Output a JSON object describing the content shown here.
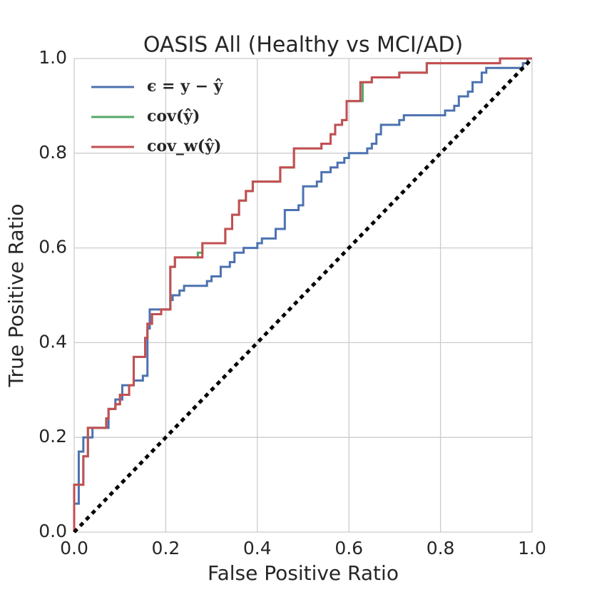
{
  "chart_data": {
    "type": "line",
    "title": "OASIS All (Healthy vs MCI/AD)",
    "xlabel": "False Positive Ratio",
    "ylabel": "True Positive Ratio",
    "xlim": [
      0,
      1
    ],
    "ylim": [
      0,
      1
    ],
    "xticks": [
      {
        "value": 0,
        "label": "0.0"
      },
      {
        "value": 0.2,
        "label": "0.2"
      },
      {
        "value": 0.4,
        "label": "0.4"
      },
      {
        "value": 0.6,
        "label": "0.6"
      },
      {
        "value": 0.8,
        "label": "0.8"
      },
      {
        "value": 1,
        "label": "1.0"
      }
    ],
    "yticks": [
      {
        "value": 0,
        "label": "0.0"
      },
      {
        "value": 0.2,
        "label": "0.2"
      },
      {
        "value": 0.4,
        "label": "0.4"
      },
      {
        "value": 0.6,
        "label": "0.6"
      },
      {
        "value": 0.8,
        "label": "0.8"
      },
      {
        "value": 1,
        "label": "1.0"
      }
    ],
    "grid": true,
    "legend": "upper left",
    "series": [
      {
        "name": "ϵ = y − ŷ",
        "color": "#4c72b0",
        "x": [
          0,
          0,
          0.01,
          0.01,
          0.02,
          0.02,
          0.04,
          0.04,
          0.075,
          0.075,
          0.09,
          0.09,
          0.105,
          0.105,
          0.13,
          0.13,
          0.15,
          0.15,
          0.16,
          0.16,
          0.165,
          0.165,
          0.21,
          0.21,
          0.215,
          0.215,
          0.23,
          0.23,
          0.24,
          0.24,
          0.29,
          0.29,
          0.3,
          0.3,
          0.32,
          0.32,
          0.34,
          0.34,
          0.35,
          0.35,
          0.37,
          0.37,
          0.4,
          0.4,
          0.41,
          0.41,
          0.44,
          0.44,
          0.46,
          0.46,
          0.49,
          0.49,
          0.5,
          0.5,
          0.53,
          0.53,
          0.54,
          0.54,
          0.56,
          0.56,
          0.575,
          0.575,
          0.59,
          0.59,
          0.6,
          0.6,
          0.64,
          0.64,
          0.65,
          0.65,
          0.66,
          0.66,
          0.67,
          0.67,
          0.71,
          0.71,
          0.72,
          0.72,
          0.81,
          0.81,
          0.83,
          0.83,
          0.84,
          0.84,
          0.86,
          0.86,
          0.87,
          0.87,
          0.89,
          0.89,
          0.9,
          0.9,
          0.98,
          0.98,
          0.99,
          0.99,
          1
        ],
        "values": [
          0,
          0.06,
          0.06,
          0.17,
          0.17,
          0.2,
          0.2,
          0.22,
          0.22,
          0.26,
          0.26,
          0.28,
          0.28,
          0.31,
          0.31,
          0.32,
          0.32,
          0.33,
          0.33,
          0.43,
          0.43,
          0.47,
          0.47,
          0.49,
          0.49,
          0.5,
          0.5,
          0.51,
          0.51,
          0.52,
          0.52,
          0.53,
          0.53,
          0.54,
          0.54,
          0.56,
          0.56,
          0.57,
          0.57,
          0.59,
          0.59,
          0.6,
          0.6,
          0.61,
          0.61,
          0.62,
          0.62,
          0.64,
          0.64,
          0.68,
          0.68,
          0.69,
          0.69,
          0.73,
          0.73,
          0.74,
          0.74,
          0.76,
          0.76,
          0.77,
          0.77,
          0.78,
          0.78,
          0.79,
          0.79,
          0.8,
          0.8,
          0.81,
          0.81,
          0.82,
          0.82,
          0.84,
          0.84,
          0.86,
          0.86,
          0.87,
          0.87,
          0.88,
          0.88,
          0.89,
          0.89,
          0.9,
          0.9,
          0.92,
          0.92,
          0.93,
          0.93,
          0.95,
          0.95,
          0.97,
          0.97,
          0.98,
          0.98,
          0.99,
          0.99,
          1,
          1
        ]
      },
      {
        "name": "cov(ŷ)",
        "color": "#55a868",
        "x": [
          0,
          0,
          0.02,
          0.02,
          0.03,
          0.03,
          0.07,
          0.07,
          0.075,
          0.075,
          0.09,
          0.09,
          0.1,
          0.1,
          0.12,
          0.12,
          0.13,
          0.13,
          0.155,
          0.155,
          0.16,
          0.16,
          0.17,
          0.17,
          0.19,
          0.19,
          0.21,
          0.21,
          0.22,
          0.22,
          0.27,
          0.27,
          0.28,
          0.28,
          0.33,
          0.33,
          0.345,
          0.345,
          0.36,
          0.36,
          0.375,
          0.375,
          0.39,
          0.39,
          0.45,
          0.45,
          0.48,
          0.48,
          0.54,
          0.54,
          0.56,
          0.56,
          0.57,
          0.57,
          0.585,
          0.585,
          0.595,
          0.595,
          0.63,
          0.63,
          0.65,
          0.65,
          0.71,
          0.71,
          0.77,
          0.77,
          0.93,
          0.93,
          1
        ],
        "values": [
          0,
          0.1,
          0.1,
          0.16,
          0.16,
          0.22,
          0.22,
          0.24,
          0.24,
          0.26,
          0.26,
          0.27,
          0.27,
          0.29,
          0.29,
          0.31,
          0.31,
          0.37,
          0.37,
          0.41,
          0.41,
          0.44,
          0.44,
          0.46,
          0.46,
          0.47,
          0.47,
          0.56,
          0.56,
          0.58,
          0.58,
          0.59,
          0.59,
          0.61,
          0.61,
          0.64,
          0.64,
          0.67,
          0.67,
          0.7,
          0.7,
          0.72,
          0.72,
          0.74,
          0.74,
          0.77,
          0.77,
          0.81,
          0.81,
          0.82,
          0.82,
          0.84,
          0.84,
          0.86,
          0.86,
          0.87,
          0.87,
          0.91,
          0.91,
          0.95,
          0.95,
          0.96,
          0.96,
          0.97,
          0.97,
          0.99,
          0.99,
          1,
          1
        ]
      },
      {
        "name": "cov_w(ŷ)",
        "color": "#c44e52",
        "x": [
          0,
          0,
          0.02,
          0.02,
          0.03,
          0.03,
          0.07,
          0.07,
          0.075,
          0.075,
          0.09,
          0.09,
          0.1,
          0.1,
          0.12,
          0.12,
          0.13,
          0.13,
          0.155,
          0.155,
          0.16,
          0.16,
          0.17,
          0.17,
          0.19,
          0.19,
          0.21,
          0.21,
          0.22,
          0.22,
          0.28,
          0.28,
          0.33,
          0.33,
          0.345,
          0.345,
          0.36,
          0.36,
          0.375,
          0.375,
          0.39,
          0.39,
          0.45,
          0.45,
          0.48,
          0.48,
          0.54,
          0.54,
          0.56,
          0.56,
          0.57,
          0.57,
          0.585,
          0.585,
          0.595,
          0.595,
          0.625,
          0.625,
          0.65,
          0.65,
          0.71,
          0.71,
          0.77,
          0.77,
          0.93,
          0.93,
          1
        ],
        "values": [
          0,
          0.1,
          0.1,
          0.16,
          0.16,
          0.22,
          0.22,
          0.24,
          0.24,
          0.26,
          0.26,
          0.27,
          0.27,
          0.29,
          0.29,
          0.31,
          0.31,
          0.37,
          0.37,
          0.41,
          0.41,
          0.44,
          0.44,
          0.46,
          0.46,
          0.47,
          0.47,
          0.56,
          0.56,
          0.58,
          0.58,
          0.61,
          0.61,
          0.64,
          0.64,
          0.67,
          0.67,
          0.7,
          0.7,
          0.72,
          0.72,
          0.74,
          0.74,
          0.77,
          0.77,
          0.81,
          0.81,
          0.82,
          0.82,
          0.84,
          0.84,
          0.86,
          0.86,
          0.87,
          0.87,
          0.91,
          0.91,
          0.95,
          0.95,
          0.96,
          0.96,
          0.97,
          0.97,
          0.99,
          0.99,
          1,
          1
        ]
      }
    ],
    "reference_line": {
      "x": [
        0,
        1
      ],
      "values": [
        0,
        1
      ],
      "color": "#000000"
    }
  }
}
